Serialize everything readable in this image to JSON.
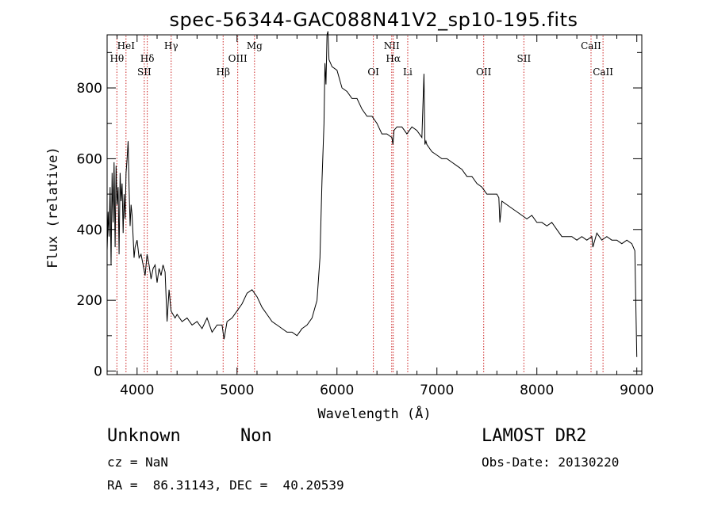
{
  "chart_data": {
    "type": "line",
    "title": "spec-56344-GAC088N41V2_sp10-195.fits",
    "xlabel": "Wavelength (Å)",
    "ylabel": "Flux (relative)",
    "xlim": [
      3700,
      9050
    ],
    "ylim": [
      -10,
      950
    ],
    "x_ticks": [
      4000,
      5000,
      6000,
      7000,
      8000,
      9000
    ],
    "y_ticks": [
      0,
      200,
      400,
      600,
      800
    ],
    "grid": false,
    "series": [
      {
        "x": [
          3700,
          3710,
          3720,
          3730,
          3740,
          3750,
          3760,
          3770,
          3780,
          3790,
          3800,
          3810,
          3820,
          3830,
          3840,
          3850,
          3860,
          3870,
          3880,
          3890,
          3900,
          3910,
          3920,
          3930,
          3940,
          3950,
          3960,
          3970,
          3980,
          3990,
          4000,
          4020,
          4040,
          4060,
          4080,
          4100,
          4120,
          4140,
          4160,
          4180,
          4200,
          4220,
          4240,
          4260,
          4280,
          4300,
          4320,
          4340,
          4360,
          4380,
          4400,
          4450,
          4500,
          4550,
          4600,
          4650,
          4700,
          4750,
          4800,
          4850,
          4870,
          4900,
          4950,
          5000,
          5050,
          5100,
          5150,
          5200,
          5250,
          5300,
          5350,
          5400,
          5450,
          5500,
          5550,
          5600,
          5650,
          5700,
          5750,
          5800,
          5830,
          5850,
          5870,
          5880,
          5890,
          5900,
          5910,
          5920,
          5950,
          6000,
          6050,
          6100,
          6150,
          6200,
          6250,
          6300,
          6350,
          6400,
          6450,
          6500,
          6550,
          6560,
          6570,
          6600,
          6650,
          6700,
          6750,
          6800,
          6850,
          6870,
          6880,
          6890,
          6900,
          6950,
          7000,
          7050,
          7100,
          7150,
          7200,
          7250,
          7300,
          7350,
          7400,
          7450,
          7500,
          7550,
          7600,
          7620,
          7630,
          7650,
          7700,
          7750,
          7800,
          7850,
          7900,
          7950,
          8000,
          8050,
          8100,
          8150,
          8200,
          8250,
          8300,
          8350,
          8400,
          8450,
          8500,
          8550,
          8560,
          8600,
          8650,
          8700,
          8750,
          8800,
          8850,
          8900,
          8950,
          8980,
          9000
        ],
        "y": [
          340,
          450,
          380,
          520,
          300,
          560,
          420,
          590,
          350,
          580,
          470,
          520,
          330,
          560,
          480,
          530,
          390,
          500,
          430,
          560,
          600,
          650,
          520,
          410,
          470,
          440,
          380,
          320,
          350,
          360,
          370,
          320,
          330,
          300,
          270,
          330,
          300,
          260,
          290,
          300,
          250,
          290,
          270,
          300,
          280,
          140,
          230,
          170,
          160,
          150,
          160,
          140,
          150,
          130,
          140,
          120,
          150,
          110,
          130,
          130,
          90,
          140,
          150,
          170,
          190,
          220,
          230,
          210,
          180,
          160,
          140,
          130,
          120,
          110,
          110,
          100,
          120,
          130,
          150,
          200,
          320,
          540,
          700,
          870,
          810,
          950,
          960,
          880,
          860,
          850,
          800,
          790,
          770,
          770,
          740,
          720,
          720,
          700,
          670,
          670,
          660,
          640,
          680,
          690,
          690,
          670,
          690,
          680,
          660,
          840,
          640,
          650,
          640,
          620,
          610,
          600,
          600,
          590,
          580,
          570,
          550,
          550,
          530,
          520,
          500,
          500,
          500,
          490,
          420,
          480,
          470,
          460,
          450,
          440,
          430,
          440,
          420,
          420,
          410,
          420,
          400,
          380,
          380,
          380,
          370,
          380,
          370,
          380,
          350,
          390,
          370,
          380,
          370,
          370,
          360,
          370,
          360,
          340,
          40
        ]
      }
    ],
    "lines": [
      {
        "wave": 3798,
        "label": "Hθ",
        "row": 2
      },
      {
        "wave": 3889,
        "label": "HeI",
        "row": 1
      },
      {
        "wave": 4072,
        "label": "SII",
        "row": 3
      },
      {
        "wave": 4102,
        "label": "Hδ",
        "row": 2
      },
      {
        "wave": 4341,
        "label": "Hγ",
        "row": 1
      },
      {
        "wave": 4861,
        "label": "Hβ",
        "row": 3
      },
      {
        "wave": 5007,
        "label": "OIII",
        "row": 2
      },
      {
        "wave": 5175,
        "label": "Mg",
        "row": 1
      },
      {
        "wave": 6364,
        "label": "OI",
        "row": 3
      },
      {
        "wave": 6548,
        "label": "NII",
        "row": 1
      },
      {
        "wave": 6563,
        "label": "Hα",
        "row": 2
      },
      {
        "wave": 6708,
        "label": "Li",
        "row": 3
      },
      {
        "wave": 7468,
        "label": "OII",
        "row": 3
      },
      {
        "wave": 7870,
        "label": "SII",
        "row": 2
      },
      {
        "wave": 8542,
        "label": "CaII",
        "row": 1
      },
      {
        "wave": 8662,
        "label": "CaII",
        "row": 3
      }
    ]
  },
  "info": {
    "class": "Unknown",
    "subclass": "Non",
    "survey": "LAMOST DR2",
    "cz": "cz = NaN",
    "obs_date": "Obs-Date: 20130220",
    "radec": "RA =  86.31143, DEC =  40.20539"
  },
  "colors": {
    "axis": "#000000",
    "spectrum": "#000000",
    "line_marker": "#cc2222"
  }
}
